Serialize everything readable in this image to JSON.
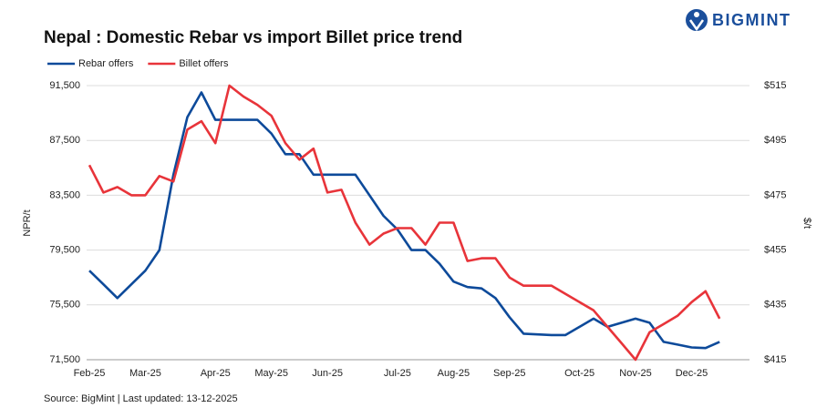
{
  "brand": "BIGMINT",
  "chart_data": {
    "type": "line",
    "title": "Nepal : Domestic Rebar vs import Billet price trend",
    "y_label": "NPR/t",
    "y2_label": "$/t",
    "source": "Source: BigMint | Last updated: 13-12-2025",
    "categories": [
      "Feb-25",
      null,
      null,
      null,
      "Mar-25",
      null,
      null,
      null,
      null,
      "Apr-25",
      null,
      null,
      null,
      "May-25",
      null,
      null,
      null,
      "Jun-25",
      null,
      null,
      null,
      null,
      "Jul-25",
      null,
      null,
      null,
      "Aug-25",
      null,
      null,
      null,
      "Sep-25",
      null,
      null,
      null,
      null,
      "Oct-25",
      null,
      null,
      null,
      "Nov-25",
      null,
      null,
      null,
      "Dec-25",
      null,
      null
    ],
    "series": [
      {
        "name": "Rebar offers",
        "color": "#0d4a9a",
        "axis": "y",
        "values": [
          78000,
          77000,
          76000,
          77000,
          78000,
          79500,
          85000,
          89200,
          91000,
          89000,
          89000,
          89000,
          89000,
          88000,
          86500,
          86500,
          85000,
          85000,
          85000,
          85000,
          83500,
          82000,
          81000,
          79500,
          79500,
          78500,
          77200,
          76800,
          76700,
          76000,
          74600,
          73400,
          73350,
          73300,
          73300,
          73900,
          74500,
          73900,
          74200,
          74500,
          74200,
          72800,
          72600,
          72400,
          72350,
          72800
        ]
      },
      {
        "name": "Billet offers",
        "color": "#e8343a",
        "axis": "y2",
        "values": [
          486,
          476,
          478,
          475,
          475,
          482,
          480,
          499,
          502,
          494,
          515,
          511,
          508,
          504,
          494,
          488,
          492,
          476,
          477,
          465,
          457,
          461,
          463,
          463,
          457,
          465,
          465,
          451,
          452,
          452,
          445,
          442,
          442,
          442,
          439,
          436,
          433,
          427,
          421,
          415,
          425,
          428,
          431,
          436,
          440,
          430
        ]
      }
    ],
    "ylim": [
      71500,
      91500
    ],
    "yticks": [
      {
        "value": 71500,
        "label": "71,500"
      },
      {
        "value": 75500,
        "label": "75,500"
      },
      {
        "value": 79500,
        "label": "79,500"
      },
      {
        "value": 83500,
        "label": "83,500"
      },
      {
        "value": 87500,
        "label": "87,500"
      },
      {
        "value": 91500,
        "label": "91,500"
      }
    ],
    "y2lim": [
      415,
      515
    ],
    "y2ticks": [
      {
        "value": 415,
        "label": "$415"
      },
      {
        "value": 435,
        "label": "$435"
      },
      {
        "value": 455,
        "label": "$455"
      },
      {
        "value": 475,
        "label": "$475"
      },
      {
        "value": 495,
        "label": "$495"
      },
      {
        "value": 515,
        "label": "$515"
      }
    ],
    "grid": true,
    "legend": "top-left"
  }
}
